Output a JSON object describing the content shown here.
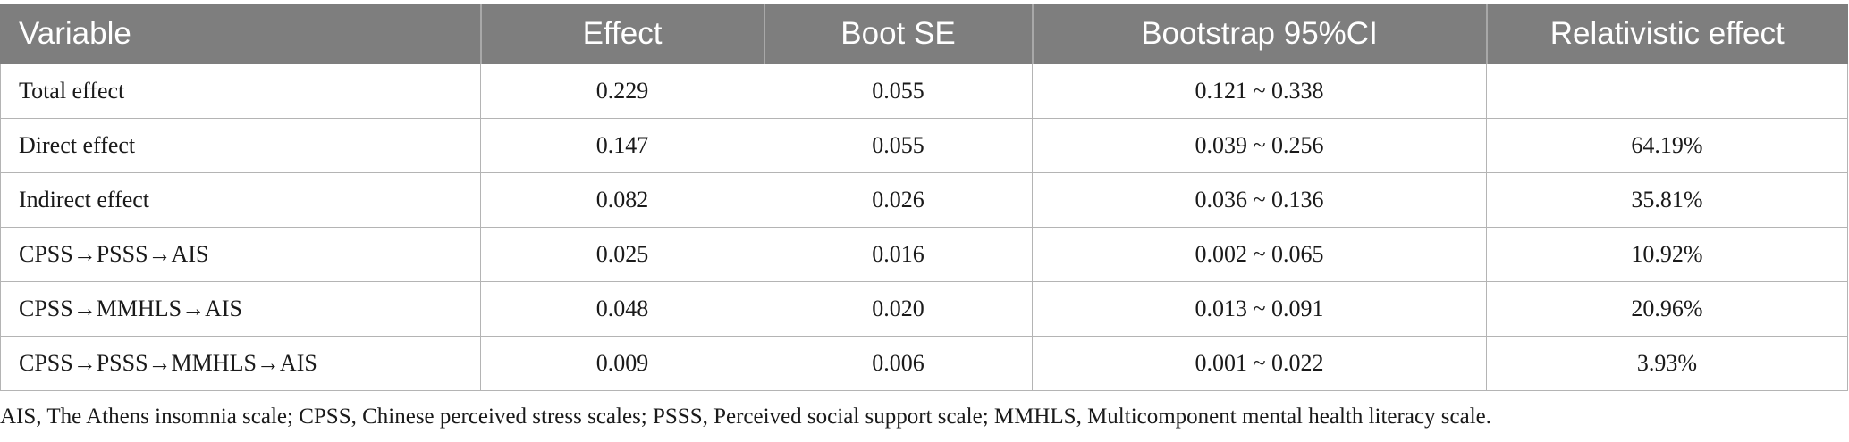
{
  "table": {
    "headers": [
      "Variable",
      "Effect",
      "Boot SE",
      "Bootstrap 95%CI",
      "Relativistic effect"
    ],
    "rows": [
      [
        "Total effect",
        "0.229",
        "0.055",
        "0.121 ~ 0.338",
        ""
      ],
      [
        "Direct effect",
        "0.147",
        "0.055",
        "0.039 ~ 0.256",
        "64.19%"
      ],
      [
        "Indirect effect",
        "0.082",
        "0.026",
        "0.036 ~ 0.136",
        "35.81%"
      ],
      [
        "CPSS→PSSS→AIS",
        "0.025",
        "0.016",
        "0.002 ~ 0.065",
        "10.92%"
      ],
      [
        "CPSS→MMHLS→AIS",
        "0.048",
        "0.020",
        "0.013 ~ 0.091",
        "20.96%"
      ],
      [
        "CPSS→PSSS→MMHLS→AIS",
        "0.009",
        "0.006",
        "0.001 ~ 0.022",
        "3.93%"
      ]
    ]
  },
  "footnote": "AIS, The Athens insomnia scale; CPSS, Chinese perceived stress scales; PSSS, Perceived social support scale; MMHLS, Multicomponent mental health literacy scale.",
  "colors": {
    "header_background": "#7e7e7e",
    "header_text": "#ffffff",
    "grid_line": "#b4b4b4"
  }
}
